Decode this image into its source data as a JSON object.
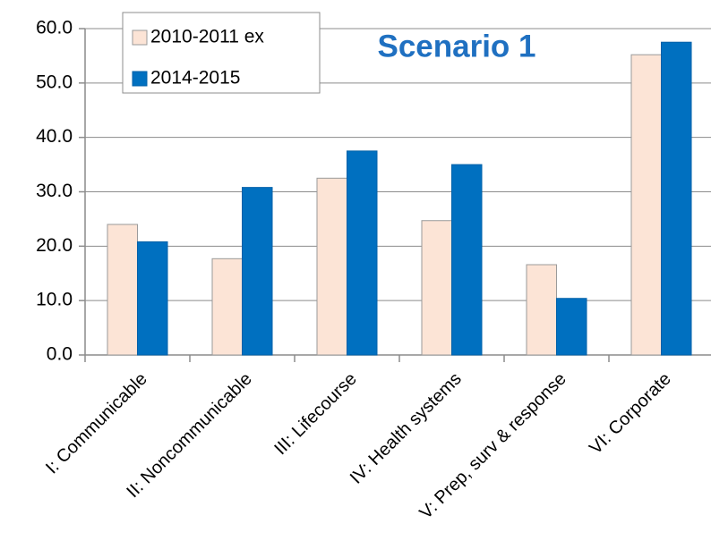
{
  "chart_data": {
    "type": "bar",
    "title": "Scenario 1",
    "categories": [
      "I: Communicable",
      "II: Noncommunicable",
      "III: Lifecourse",
      "IV: Health systems",
      "V: Prep, surv & response",
      "VI: Corporate"
    ],
    "series": [
      {
        "name": "2010-2011 ex",
        "color": "#fce4d6",
        "values": [
          24.0,
          17.7,
          32.5,
          24.7,
          16.6,
          55.2
        ]
      },
      {
        "name": "2014-2015",
        "color": "#0070c0",
        "values": [
          20.8,
          30.8,
          37.5,
          35.0,
          10.4,
          57.5
        ]
      }
    ],
    "ylim": [
      0,
      60
    ],
    "yticks": [
      {
        "value": 0,
        "label": "0.0"
      },
      {
        "value": 10,
        "label": "10.0"
      },
      {
        "value": 20,
        "label": "20.0"
      },
      {
        "value": 30,
        "label": "30.0"
      },
      {
        "value": 40,
        "label": "40.0"
      },
      {
        "value": 50,
        "label": "50.0"
      },
      {
        "value": 60,
        "label": "60.0"
      }
    ],
    "grid": true,
    "legend": "top-left"
  }
}
